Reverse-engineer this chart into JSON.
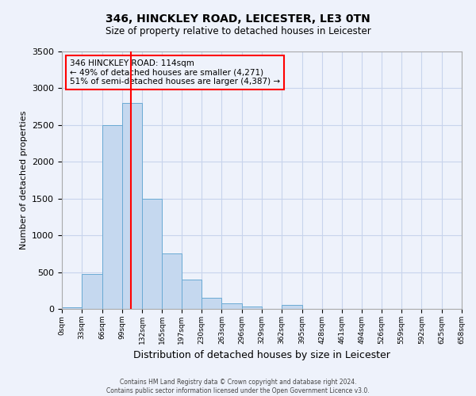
{
  "title": "346, HINCKLEY ROAD, LEICESTER, LE3 0TN",
  "subtitle": "Size of property relative to detached houses in Leicester",
  "xlabel": "Distribution of detached houses by size in Leicester",
  "ylabel": "Number of detached properties",
  "bin_labels": [
    "0sqm",
    "33sqm",
    "66sqm",
    "99sqm",
    "132sqm",
    "165sqm",
    "197sqm",
    "230sqm",
    "263sqm",
    "296sqm",
    "329sqm",
    "362sqm",
    "395sqm",
    "428sqm",
    "461sqm",
    "494sqm",
    "526sqm",
    "559sqm",
    "592sqm",
    "625sqm",
    "658sqm"
  ],
  "bar_values": [
    20,
    470,
    2500,
    2800,
    1500,
    750,
    400,
    150,
    75,
    30,
    0,
    55,
    0,
    0,
    0,
    0,
    0,
    0,
    0,
    0
  ],
  "bar_color": "#c5d8ef",
  "bar_edge_color": "#6aaad4",
  "vline_x": 114,
  "vline_color": "red",
  "annotation_title": "346 HINCKLEY ROAD: 114sqm",
  "annotation_line1": "← 49% of detached houses are smaller (4,271)",
  "annotation_line2": "51% of semi-detached houses are larger (4,387) →",
  "annotation_box_color": "red",
  "ylim": [
    0,
    3500
  ],
  "bin_edges": [
    0,
    33,
    66,
    99,
    132,
    165,
    197,
    230,
    263,
    296,
    329,
    362,
    395,
    428,
    461,
    494,
    526,
    559,
    592,
    625,
    658
  ],
  "footer_line1": "Contains HM Land Registry data © Crown copyright and database right 2024.",
  "footer_line2": "Contains public sector information licensed under the Open Government Licence v3.0.",
  "bg_color": "#eef2fb",
  "grid_color": "#c8d4ec"
}
